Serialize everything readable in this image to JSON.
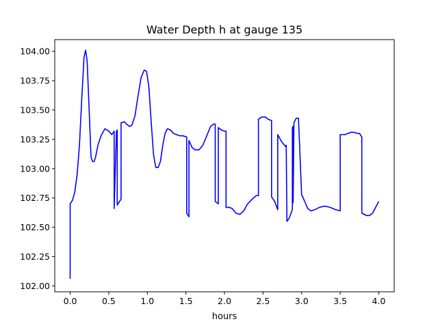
{
  "chart_data": {
    "type": "line",
    "title": "Water Depth h at gauge 135",
    "xlabel": "hours",
    "ylabel": "",
    "xlim": [
      -0.2,
      4.2
    ],
    "ylim": [
      101.95,
      104.1
    ],
    "xticks": [
      0.0,
      0.5,
      1.0,
      1.5,
      2.0,
      2.5,
      3.0,
      3.5,
      4.0
    ],
    "xtick_labels": [
      "0.0",
      "0.5",
      "1.0",
      "1.5",
      "2.0",
      "2.5",
      "3.0",
      "3.5",
      "4.0"
    ],
    "yticks": [
      102.0,
      102.25,
      102.5,
      102.75,
      103.0,
      103.25,
      103.5,
      103.75,
      104.0
    ],
    "ytick_labels": [
      "102.00",
      "102.25",
      "102.50",
      "102.75",
      "103.00",
      "103.25",
      "103.50",
      "103.75",
      "104.00"
    ],
    "grid": false,
    "series": [
      {
        "color": "#0000ff",
        "x": [
          0.0,
          0.0,
          0.03,
          0.06,
          0.09,
          0.12,
          0.15,
          0.18,
          0.2,
          0.22,
          0.24,
          0.27,
          0.29,
          0.31,
          0.33,
          0.36,
          0.4,
          0.45,
          0.5,
          0.54,
          0.57,
          0.57,
          0.6,
          0.61,
          0.61,
          0.64,
          0.66,
          0.66,
          0.7,
          0.73,
          0.77,
          0.8,
          0.84,
          0.88,
          0.92,
          0.96,
          0.99,
          1.02,
          1.05,
          1.08,
          1.11,
          1.14,
          1.17,
          1.2,
          1.23,
          1.26,
          1.3,
          1.34,
          1.38,
          1.42,
          1.46,
          1.51,
          1.51,
          1.54,
          1.54,
          1.58,
          1.62,
          1.67,
          1.72,
          1.77,
          1.82,
          1.86,
          1.88,
          1.88,
          1.92,
          1.92,
          1.96,
          2.0,
          2.02,
          2.02,
          2.06,
          2.1,
          2.15,
          2.2,
          2.25,
          2.3,
          2.36,
          2.41,
          2.44,
          2.44,
          2.48,
          2.53,
          2.57,
          2.61,
          2.61,
          2.65,
          2.69,
          2.69,
          2.74,
          2.79,
          2.8,
          2.81,
          2.84,
          2.88,
          2.88,
          2.89,
          2.89,
          2.9,
          2.93,
          2.96,
          2.96,
          3.0,
          3.04,
          3.08,
          3.12,
          3.17,
          3.23,
          3.3,
          3.37,
          3.44,
          3.5,
          3.5,
          3.56,
          3.6,
          3.64,
          3.68,
          3.72,
          3.75,
          3.78,
          3.78,
          3.84,
          3.88,
          3.92,
          3.96,
          4.0
        ],
        "y": [
          102.06,
          102.7,
          102.73,
          102.8,
          102.95,
          103.2,
          103.6,
          103.95,
          104.01,
          103.92,
          103.6,
          103.1,
          103.06,
          103.06,
          103.1,
          103.2,
          103.28,
          103.34,
          103.32,
          103.29,
          103.32,
          102.66,
          103.32,
          103.33,
          102.69,
          102.72,
          102.74,
          103.39,
          103.4,
          103.38,
          103.36,
          103.37,
          103.45,
          103.62,
          103.78,
          103.84,
          103.83,
          103.7,
          103.4,
          103.12,
          103.01,
          103.01,
          103.06,
          103.2,
          103.3,
          103.34,
          103.33,
          103.3,
          103.29,
          103.28,
          103.28,
          103.27,
          102.62,
          102.59,
          103.24,
          103.18,
          103.16,
          103.16,
          103.2,
          103.28,
          103.36,
          103.38,
          103.38,
          102.72,
          102.7,
          103.35,
          103.33,
          103.32,
          103.32,
          102.67,
          102.67,
          102.66,
          102.62,
          102.61,
          102.64,
          102.7,
          102.74,
          102.77,
          102.77,
          103.42,
          103.44,
          103.44,
          103.42,
          103.41,
          102.76,
          102.72,
          102.65,
          103.29,
          103.23,
          103.19,
          103.2,
          102.55,
          102.58,
          102.65,
          103.35,
          103.36,
          102.71,
          103.39,
          103.43,
          103.43,
          103.42,
          102.78,
          102.72,
          102.66,
          102.64,
          102.65,
          102.67,
          102.68,
          102.67,
          102.65,
          102.64,
          103.29,
          103.29,
          103.3,
          103.31,
          103.31,
          103.3,
          103.3,
          103.27,
          102.62,
          102.6,
          102.6,
          102.62,
          102.67,
          102.72
        ]
      }
    ]
  }
}
